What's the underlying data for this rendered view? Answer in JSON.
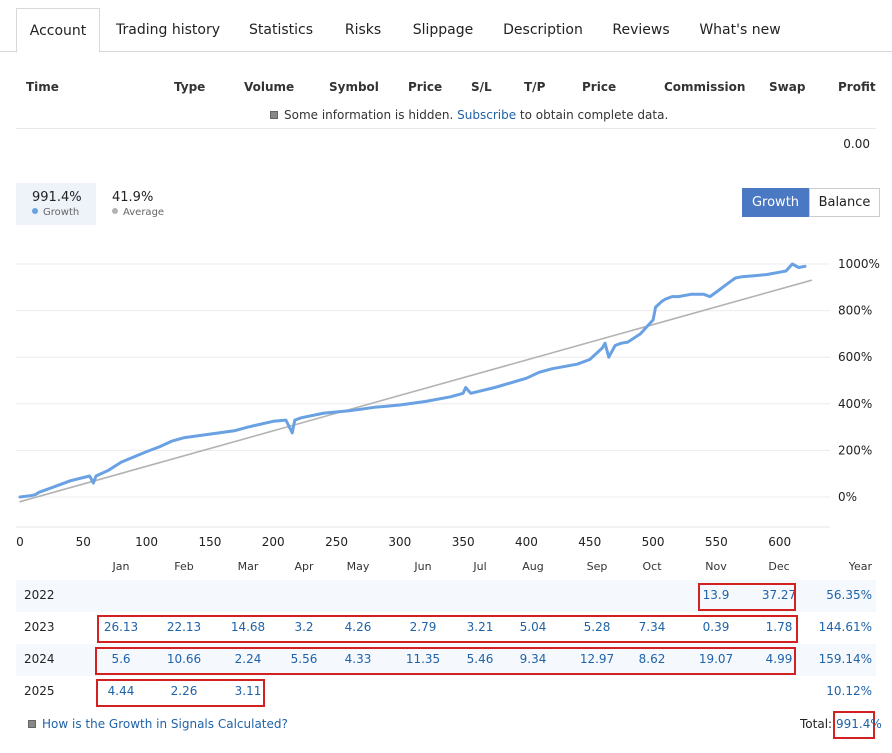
{
  "tabs": [
    "Account",
    "Trading history",
    "Statistics",
    "Risks",
    "Slippage",
    "Description",
    "Reviews",
    "What's new"
  ],
  "table_headers": [
    "Time",
    "Type",
    "Volume",
    "Symbol",
    "Price",
    "S/L",
    "T/P",
    "Price",
    "Commission",
    "Swap",
    "Profit"
  ],
  "hidden_note": {
    "before": "Some information is hidden.",
    "link": "Subscribe",
    "after": "to obtain complete data."
  },
  "profit_total": "0.00",
  "stats": {
    "growth_value": "991.4%",
    "growth_label": "Growth",
    "average_value": "41.9%",
    "average_label": "Average"
  },
  "toggle": {
    "growth": "Growth",
    "balance": "Balance"
  },
  "colors": {
    "growth_line": "#6aa1e3",
    "average_line": "#b3b3b3",
    "accent": "#4a78c2",
    "link": "#1f63a8",
    "highlight_box": "#d32020"
  },
  "chart_data": {
    "type": "line",
    "x_ticks": [
      0,
      50,
      100,
      150,
      200,
      250,
      300,
      350,
      400,
      450,
      500,
      550,
      600
    ],
    "y_ticks": [
      0,
      200,
      400,
      600,
      800,
      1000
    ],
    "y_tick_labels": [
      "0%",
      "200%",
      "400%",
      "600%",
      "800%",
      "1000%"
    ],
    "xlim": [
      0,
      625
    ],
    "ylim": [
      -120,
      1100
    ],
    "series": [
      {
        "name": "Growth",
        "x": [
          0,
          8,
          12,
          15,
          25,
          40,
          55,
          58,
          60,
          70,
          80,
          100,
          110,
          120,
          130,
          150,
          170,
          180,
          200,
          210,
          215,
          217,
          222,
          240,
          260,
          280,
          300,
          320,
          340,
          350,
          352,
          356,
          375,
          400,
          410,
          420,
          440,
          450,
          460,
          462,
          465,
          470,
          475,
          480,
          490,
          500,
          502,
          505,
          507,
          510,
          515,
          520,
          530,
          540,
          545,
          550,
          560,
          565,
          570,
          580,
          590,
          600,
          605,
          610,
          615,
          620
        ],
        "y": [
          0,
          5,
          10,
          20,
          40,
          70,
          90,
          60,
          90,
          115,
          150,
          195,
          215,
          240,
          255,
          270,
          285,
          300,
          325,
          330,
          275,
          330,
          340,
          360,
          370,
          385,
          395,
          410,
          430,
          445,
          470,
          445,
          470,
          510,
          535,
          550,
          570,
          590,
          640,
          660,
          600,
          650,
          660,
          665,
          700,
          760,
          815,
          830,
          840,
          850,
          860,
          860,
          870,
          870,
          860,
          880,
          920,
          940,
          945,
          950,
          955,
          965,
          970,
          1000,
          985,
          990
        ]
      },
      {
        "name": "Average",
        "x": [
          0,
          625
        ],
        "y": [
          -20,
          930
        ]
      }
    ]
  },
  "months": [
    "Jan",
    "Feb",
    "Mar",
    "Apr",
    "May",
    "Jun",
    "Jul",
    "Aug",
    "Sep",
    "Oct",
    "Nov",
    "Dec"
  ],
  "year_header": "Year",
  "years": [
    {
      "year": "2022",
      "values": [
        "",
        "",
        "",
        "",
        "",
        "",
        "",
        "",
        "",
        "",
        "13.9",
        "37.27"
      ],
      "total": "56.35%"
    },
    {
      "year": "2023",
      "values": [
        "26.13",
        "22.13",
        "14.68",
        "3.2",
        "4.26",
        "2.79",
        "3.21",
        "5.04",
        "5.28",
        "7.34",
        "0.39",
        "1.78"
      ],
      "total": "144.61%"
    },
    {
      "year": "2024",
      "values": [
        "5.6",
        "10.66",
        "2.24",
        "5.56",
        "4.33",
        "11.35",
        "5.46",
        "9.34",
        "12.97",
        "8.62",
        "19.07",
        "4.99"
      ],
      "total": "159.14%"
    },
    {
      "year": "2025",
      "values": [
        "4.44",
        "2.26",
        "3.11",
        "",
        "",
        "",
        "",
        "",
        "",
        "",
        "",
        ""
      ],
      "total": "10.12%"
    }
  ],
  "calc_link": "How is the Growth in Signals Calculated?",
  "total_label": "Total:",
  "total_value": "991.4%"
}
